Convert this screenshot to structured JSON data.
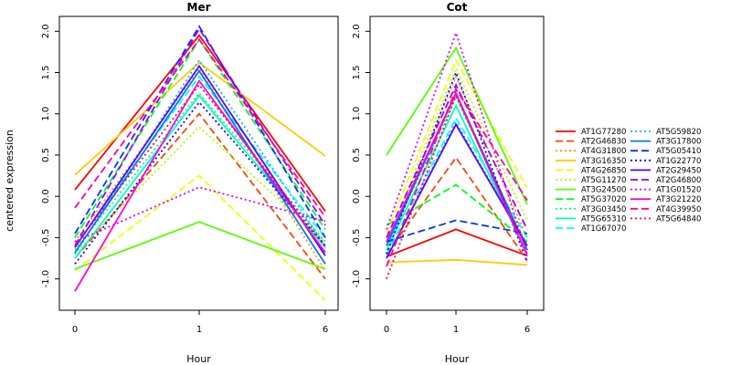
{
  "chart_data": {
    "type": "line",
    "ylabel": "centered expression",
    "xlabel": "Hour",
    "x": [
      "0",
      "1",
      "6"
    ],
    "yticks": [
      "-1.0",
      "-0.5",
      "0.0",
      "0.5",
      "1.0",
      "1.5",
      "2.0"
    ],
    "ylim": [
      -1.38,
      2.18
    ],
    "series_styles": [
      {
        "name": "AT1G77280",
        "color": "#FF0000",
        "dash": "solid"
      },
      {
        "name": "AT2G46830",
        "color": "#FF4400",
        "dash": "dashed"
      },
      {
        "name": "AT4G31800",
        "color": "#FF9900",
        "dash": "dotted"
      },
      {
        "name": "AT3G16350",
        "color": "#FFCC00",
        "dash": "solid"
      },
      {
        "name": "AT4G26850",
        "color": "#EEFF00",
        "dash": "dashed"
      },
      {
        "name": "AT5G11270",
        "color": "#AAFF00",
        "dash": "dotted"
      },
      {
        "name": "AT3G24500",
        "color": "#55FF00",
        "dash": "solid"
      },
      {
        "name": "AT5G37020",
        "color": "#00FF22",
        "dash": "dashed"
      },
      {
        "name": "AT3G03450",
        "color": "#00FF77",
        "dash": "dotted"
      },
      {
        "name": "AT5G65310",
        "color": "#00FFBB",
        "dash": "solid"
      },
      {
        "name": "AT1G67070",
        "color": "#00FFFF",
        "dash": "dashed"
      },
      {
        "name": "AT5G59820",
        "color": "#00BBFF",
        "dash": "dotted"
      },
      {
        "name": "AT3G17800",
        "color": "#0077FF",
        "dash": "solid"
      },
      {
        "name": "AT5G05410",
        "color": "#0033FF",
        "dash": "dashed"
      },
      {
        "name": "AT1G22770",
        "color": "#1100FF",
        "dash": "dotted"
      },
      {
        "name": "AT2G29450",
        "color": "#5500FF",
        "dash": "solid"
      },
      {
        "name": "AT2G46800",
        "color": "#9900FF",
        "dash": "dashed"
      },
      {
        "name": "AT1G01520",
        "color": "#DD00FF",
        "dash": "dotted"
      },
      {
        "name": "AT3G21220",
        "color": "#FF00DD",
        "dash": "solid"
      },
      {
        "name": "AT4G39950",
        "color": "#FF0099",
        "dash": "dashed"
      },
      {
        "name": "AT5G64840",
        "color": "#FF0055",
        "dash": "dotted"
      }
    ],
    "panels": [
      {
        "title": "Mer",
        "series": [
          {
            "name": "AT1G77280",
            "values": [
              0.08,
              1.95,
              -0.18
            ]
          },
          {
            "name": "AT2G46830",
            "values": [
              -0.75,
              1.0,
              -1.0
            ]
          },
          {
            "name": "AT4G31800",
            "values": [
              -0.55,
              1.55,
              -0.9
            ]
          },
          {
            "name": "AT3G16350",
            "values": [
              0.26,
              1.62,
              0.49
            ]
          },
          {
            "name": "AT4G26850",
            "values": [
              -0.9,
              0.25,
              -1.26
            ]
          },
          {
            "name": "AT5G11270",
            "values": [
              -0.7,
              0.84,
              -0.55
            ]
          },
          {
            "name": "AT3G24500",
            "values": [
              -0.88,
              -0.31,
              -0.88
            ]
          },
          {
            "name": "AT5G37020",
            "values": [
              -0.5,
              1.9,
              -0.4
            ]
          },
          {
            "name": "AT3G03450",
            "values": [
              -0.65,
              1.25,
              -0.55
            ]
          },
          {
            "name": "AT5G65310",
            "values": [
              -0.75,
              1.22,
              -0.62
            ]
          },
          {
            "name": "AT1G67070",
            "values": [
              -0.6,
              1.45,
              -0.5
            ]
          },
          {
            "name": "AT5G59820",
            "values": [
              -0.7,
              1.65,
              -0.6
            ]
          },
          {
            "name": "AT3G17800",
            "values": [
              -0.68,
              1.52,
              -0.82
            ]
          },
          {
            "name": "AT5G05410",
            "values": [
              -0.45,
              2.06,
              -0.5
            ]
          },
          {
            "name": "AT1G22770",
            "values": [
              -0.82,
              1.14,
              -0.6
            ]
          },
          {
            "name": "AT2G29450",
            "values": [
              -0.62,
              1.58,
              -0.72
            ]
          },
          {
            "name": "AT2G46800",
            "values": [
              -0.6,
              2.03,
              -0.35
            ]
          },
          {
            "name": "AT1G01520",
            "values": [
              -0.55,
              0.11,
              -0.3
            ]
          },
          {
            "name": "AT3G21220",
            "values": [
              -1.15,
              1.4,
              -0.68
            ]
          },
          {
            "name": "AT4G39950",
            "values": [
              -0.14,
              1.9,
              -0.25
            ]
          },
          {
            "name": "AT5G64840",
            "values": [
              -0.6,
              1.35,
              -0.6
            ]
          }
        ]
      },
      {
        "title": "Cot",
        "series": [
          {
            "name": "AT1G77280",
            "values": [
              -0.73,
              -0.4,
              -0.72
            ]
          },
          {
            "name": "AT2G46830",
            "values": [
              -0.7,
              0.47,
              -0.78
            ]
          },
          {
            "name": "AT4G31800",
            "values": [
              -0.6,
              1.45,
              -0.5
            ]
          },
          {
            "name": "AT3G16350",
            "values": [
              -0.8,
              -0.77,
              -0.83
            ]
          },
          {
            "name": "AT4G26850",
            "values": [
              -0.45,
              1.65,
              0.1
            ]
          },
          {
            "name": "AT5G11270",
            "values": [
              -0.55,
              1.55,
              -0.3
            ]
          },
          {
            "name": "AT3G24500",
            "values": [
              0.5,
              1.8,
              -0.1
            ]
          },
          {
            "name": "AT5G37020",
            "values": [
              -0.35,
              0.14,
              -0.55
            ]
          },
          {
            "name": "AT3G03450",
            "values": [
              -0.6,
              1.2,
              -0.6
            ]
          },
          {
            "name": "AT5G65310",
            "values": [
              -0.65,
              1.1,
              -0.7
            ]
          },
          {
            "name": "AT1G67070",
            "values": [
              -0.7,
              0.95,
              -0.5
            ]
          },
          {
            "name": "AT5G59820",
            "values": [
              -0.75,
              0.9,
              -0.6
            ]
          },
          {
            "name": "AT3G17800",
            "values": [
              -0.6,
              1.25,
              -0.65
            ]
          },
          {
            "name": "AT5G05410",
            "values": [
              -0.55,
              -0.29,
              -0.45
            ]
          },
          {
            "name": "AT1G22770",
            "values": [
              -0.7,
              1.5,
              -0.8
            ]
          },
          {
            "name": "AT2G29450",
            "values": [
              -0.75,
              0.87,
              -0.6
            ]
          },
          {
            "name": "AT2G46800",
            "values": [
              -0.5,
              1.35,
              -0.4
            ]
          },
          {
            "name": "AT1G01520",
            "values": [
              -0.4,
              1.98,
              -0.7
            ]
          },
          {
            "name": "AT3G21220",
            "values": [
              -0.55,
              1.25,
              -0.72
            ]
          },
          {
            "name": "AT4G39950",
            "values": [
              -0.85,
              1.3,
              -0.05
            ]
          },
          {
            "name": "AT5G64840",
            "values": [
              -1.0,
              1.22,
              -0.65
            ]
          }
        ]
      }
    ]
  }
}
